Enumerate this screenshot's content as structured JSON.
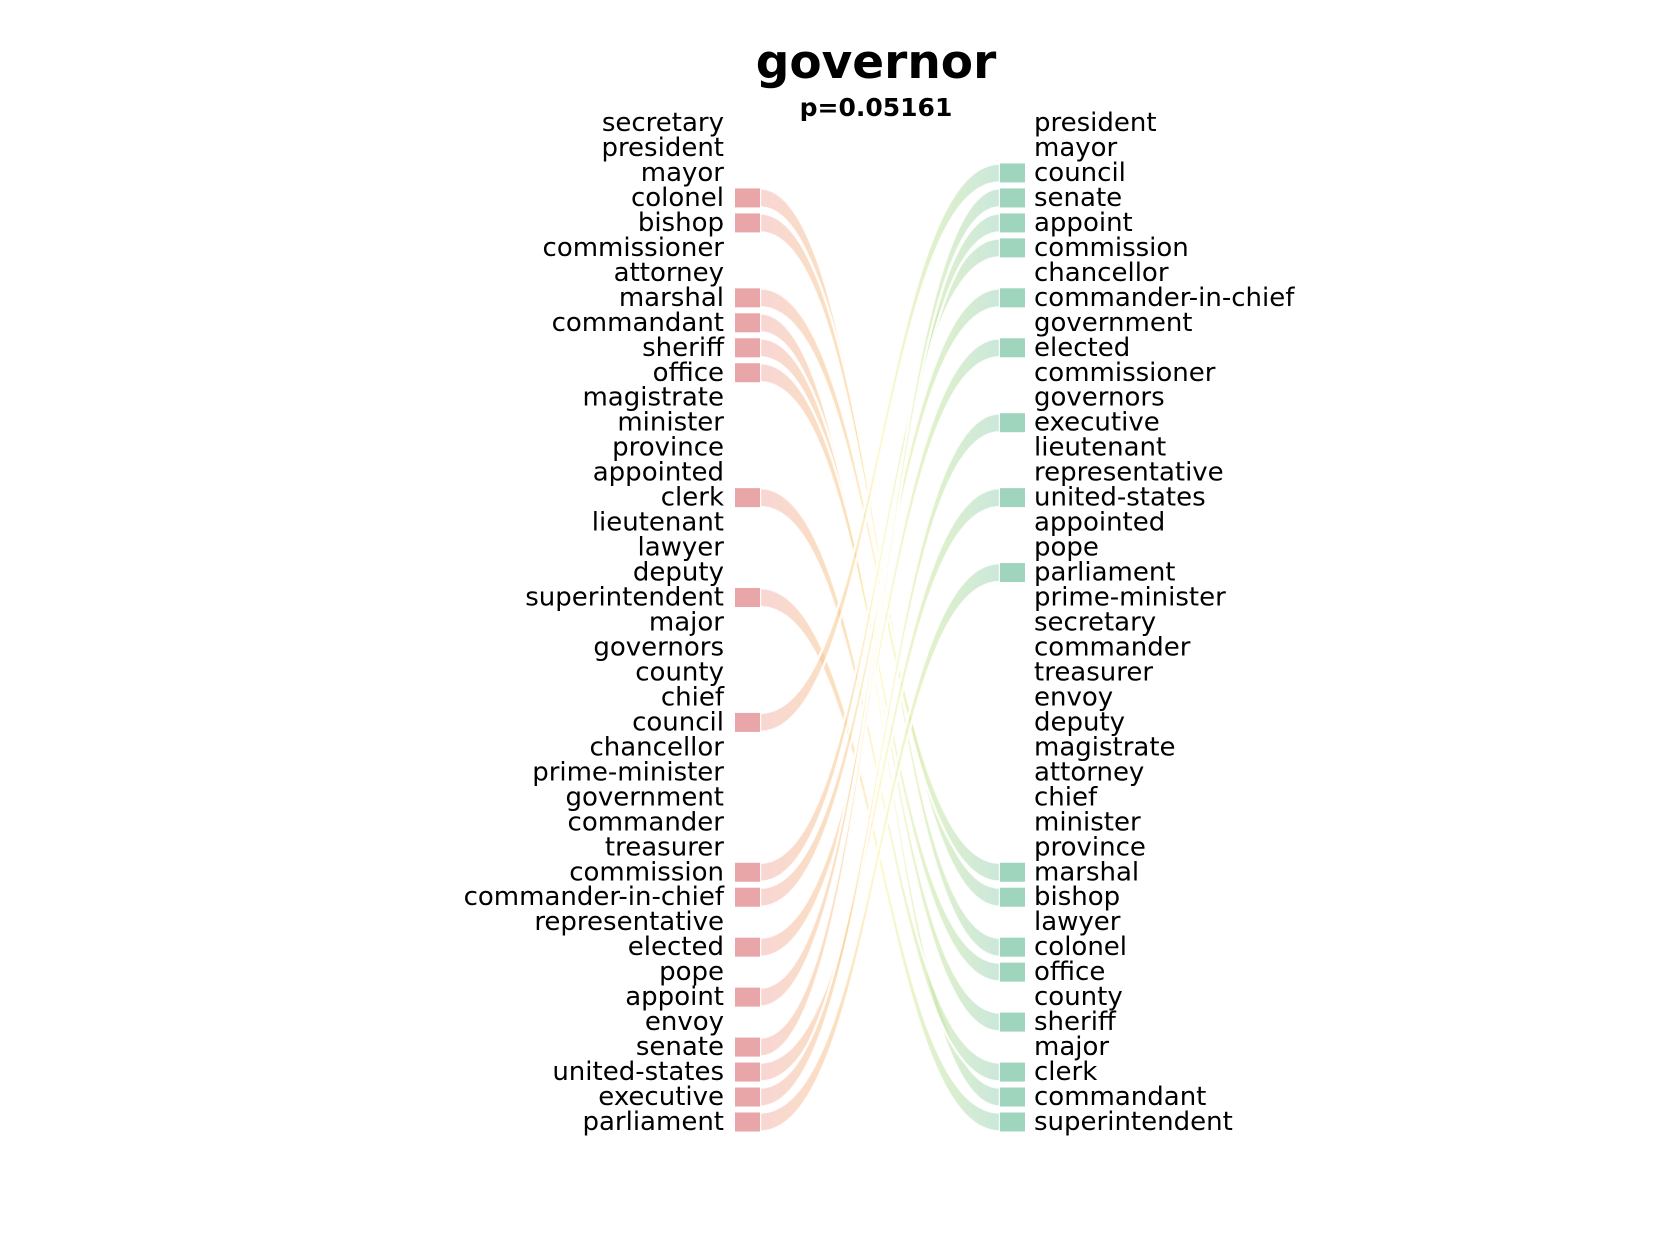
{
  "chart_data": {
    "type": "bump",
    "title": "governor",
    "subtitle": "p=0.05161",
    "left_ranking": [
      "secretary",
      "president",
      "mayor",
      "colonel",
      "bishop",
      "commissioner",
      "attorney",
      "marshal",
      "commandant",
      "sheriff",
      "office",
      "magistrate",
      "minister",
      "province",
      "appointed",
      "clerk",
      "lieutenant",
      "lawyer",
      "deputy",
      "superintendent",
      "major",
      "governors",
      "county",
      "chief",
      "council",
      "chancellor",
      "prime-minister",
      "government",
      "commander",
      "treasurer",
      "commission",
      "commander-in-chief",
      "representative",
      "elected",
      "pope",
      "appoint",
      "envoy",
      "senate",
      "united-states",
      "executive",
      "parliament"
    ],
    "right_ranking": [
      "president",
      "mayor",
      "council",
      "senate",
      "appoint",
      "commission",
      "chancellor",
      "commander-in-chief",
      "government",
      "elected",
      "commissioner",
      "governors",
      "executive",
      "lieutenant",
      "representative",
      "united-states",
      "appointed",
      "pope",
      "parliament",
      "prime-minister",
      "secretary",
      "commander",
      "treasurer",
      "envoy",
      "deputy",
      "magistrate",
      "attorney",
      "chief",
      "minister",
      "province",
      "marshal",
      "bishop",
      "lawyer",
      "colonel",
      "office",
      "county",
      "sheriff",
      "major",
      "clerk",
      "commandant",
      "superintendent"
    ],
    "moved_down": [
      "colonel",
      "bishop",
      "marshal",
      "commandant",
      "sheriff",
      "office",
      "clerk",
      "superintendent"
    ],
    "moved_up": [
      "council",
      "commission",
      "commander-in-chief",
      "elected",
      "appoint",
      "senate",
      "united-states",
      "executive",
      "parliament"
    ],
    "colors": {
      "moved_down_bar": "#e8a6a8",
      "moved_up_bar": "#9fd4bd",
      "ribbon_mid": "#fbf3a0",
      "ribbon_down_mid": "#f8c98a",
      "ribbon_up_mid": "#c9e6a0"
    }
  }
}
